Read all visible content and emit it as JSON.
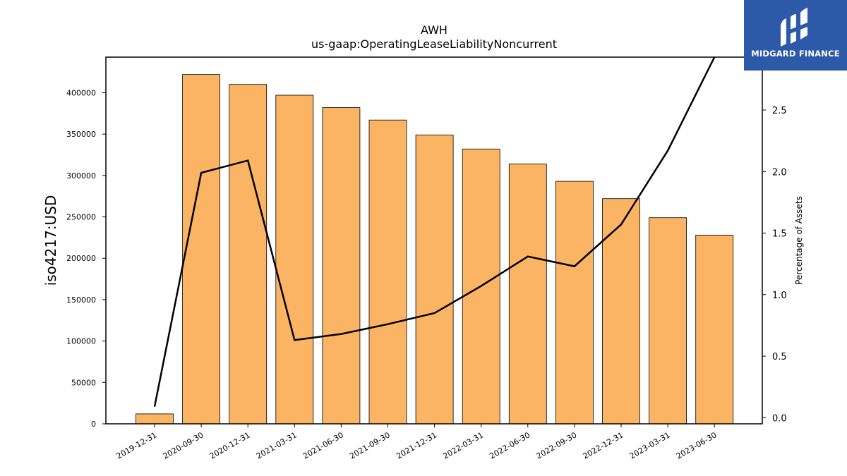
{
  "chart_data": {
    "type": "bar",
    "title": "AWH",
    "subtitle": "us-gaap:OperatingLeaseLiabilityNoncurrent",
    "ylabel": "iso4217:USD",
    "y2label": "Percentage of Assets",
    "categories": [
      "2019-12-31",
      "2020-09-30",
      "2020-12-31",
      "2021-03-31",
      "2021-06-30",
      "2021-09-30",
      "2021-12-31",
      "2022-03-31",
      "2022-06-30",
      "2022-09-30",
      "2022-12-31",
      "2023-03-31",
      "2023-06-30"
    ],
    "series": [
      {
        "axis": "left",
        "type": "bar",
        "color": "#fbb463",
        "values": [
          12000,
          422000,
          410000,
          397000,
          382000,
          367000,
          349000,
          332000,
          314000,
          293000,
          272000,
          249000,
          228000
        ]
      },
      {
        "axis": "right",
        "type": "line",
        "color": "#000000",
        "values": [
          0.09,
          1.99,
          2.09,
          0.63,
          0.68,
          0.76,
          0.85,
          1.07,
          1.31,
          1.23,
          1.57,
          2.17,
          2.93
        ]
      }
    ],
    "yticks": [
      "0",
      "50000",
      "100000",
      "150000",
      "200000",
      "250000",
      "300000",
      "350000",
      "400000"
    ],
    "ylim": [
      0,
      443000
    ],
    "y2ticks": [
      "0.0",
      "0.5",
      "1.0",
      "1.5",
      "2.0",
      "2.5"
    ],
    "y2lim": [
      -0.05,
      2.93
    ],
    "grid": false
  },
  "logo": {
    "text": "MIDGARD FINANCE",
    "bg_color": "#2c5aa9"
  }
}
